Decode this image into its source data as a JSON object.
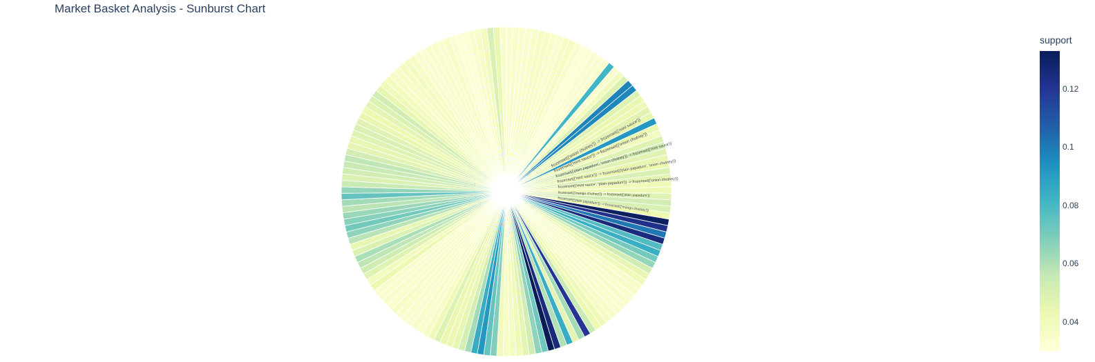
{
  "chart_data": {
    "type": "sunburst",
    "title": "Market Basket Analysis - Sunburst Chart",
    "colorbar": {
      "title": "support",
      "range": [
        0.03,
        0.133
      ],
      "ticks": [
        "0.04",
        "0.06",
        "0.08",
        "0.1",
        "0.12"
      ],
      "colorscale": [
        "#ffffd9",
        "#edf8b1",
        "#c7e9b4",
        "#7fcdbb",
        "#41b6c4",
        "#1d91c0",
        "#225ea8",
        "#253494",
        "#081d58"
      ]
    },
    "legible_labels": [
      "frozenset({'onion chutney'}) -> frozenset({'mint sauce'})",
      "frozenset({'mint sauce'}) -> frozenset({'onion chutney'})",
      "frozenset({'plain papadum', 'onion chutney'}) -> frozenset({'mint sauce'})",
      "frozenset({'mint sauce'}) -> frozenset({'plain papadum', 'onion chutney'})",
      "frozenset({'mint sauce', 'plain papadum'}) -> frozenset({'onion chutney'})",
      "frozenset({'mango chutney'}) -> frozenset({'plain papadum'})",
      "frozenset({'plain papadum'}) -> frozenset({'mango chutney'})"
    ],
    "sectors": [
      {
        "support": 0.034
      },
      {
        "support": 0.035
      },
      {
        "support": 0.033
      },
      {
        "support": 0.034
      },
      {
        "support": 0.035
      },
      {
        "support": 0.036
      },
      {
        "support": 0.036
      },
      {
        "support": 0.035
      },
      {
        "support": 0.034
      },
      {
        "support": 0.036
      },
      {
        "support": 0.037
      },
      {
        "support": 0.034
      },
      {
        "support": 0.032
      },
      {
        "support": 0.031
      },
      {
        "support": 0.033
      },
      {
        "support": 0.033
      },
      {
        "support": 0.034
      },
      {
        "support": 0.082
      },
      {
        "support": 0.034
      },
      {
        "support": 0.039
      },
      {
        "support": 0.049
      },
      {
        "support": 0.098
      },
      {
        "support": 0.097
      },
      {
        "support": 0.048
      },
      {
        "support": 0.044
      },
      {
        "support": 0.042
      },
      {
        "support": 0.047
      },
      {
        "support": 0.045
      },
      {
        "support": 0.092
      },
      {
        "support": 0.044
      },
      {
        "support": 0.039
      },
      {
        "support": 0.048
      },
      {
        "support": 0.052
      },
      {
        "support": 0.047
      },
      {
        "support": 0.045
      },
      {
        "support": 0.043
      },
      {
        "support": 0.05
      },
      {
        "support": 0.046
      },
      {
        "support": 0.041
      },
      {
        "support": 0.042
      },
      {
        "support": 0.048
      },
      {
        "support": 0.052
      },
      {
        "support": 0.05
      },
      {
        "support": 0.043
      },
      {
        "support": 0.131
      },
      {
        "support": 0.122
      },
      {
        "support": 0.101
      },
      {
        "support": 0.125
      },
      {
        "support": 0.078
      },
      {
        "support": 0.084
      },
      {
        "support": 0.071
      },
      {
        "support": 0.065
      },
      {
        "support": 0.052
      },
      {
        "support": 0.045
      },
      {
        "support": 0.041
      },
      {
        "support": 0.035
      },
      {
        "support": 0.036
      },
      {
        "support": 0.034
      },
      {
        "support": 0.035
      },
      {
        "support": 0.033
      },
      {
        "support": 0.034
      },
      {
        "support": 0.035
      },
      {
        "support": 0.037
      },
      {
        "support": 0.041
      },
      {
        "support": 0.043
      },
      {
        "support": 0.055
      },
      {
        "support": 0.12
      },
      {
        "support": 0.062
      },
      {
        "support": 0.046
      },
      {
        "support": 0.085
      },
      {
        "support": 0.06
      },
      {
        "support": 0.126
      },
      {
        "support": 0.135
      },
      {
        "support": 0.072
      },
      {
        "support": 0.066
      },
      {
        "support": 0.052
      },
      {
        "support": 0.046
      },
      {
        "support": 0.041
      },
      {
        "support": 0.038
      },
      {
        "support": 0.036
      },
      {
        "support": 0.04
      },
      {
        "support": 0.068
      },
      {
        "support": 0.074
      },
      {
        "support": 0.092
      },
      {
        "support": 0.085
      },
      {
        "support": 0.062
      },
      {
        "support": 0.051
      },
      {
        "support": 0.045
      },
      {
        "support": 0.042
      },
      {
        "support": 0.044
      },
      {
        "support": 0.048
      },
      {
        "support": 0.041
      },
      {
        "support": 0.036
      },
      {
        "support": 0.034
      },
      {
        "support": 0.035
      },
      {
        "support": 0.033
      },
      {
        "support": 0.034
      },
      {
        "support": 0.035
      },
      {
        "support": 0.036
      },
      {
        "support": 0.034
      },
      {
        "support": 0.035
      },
      {
        "support": 0.033
      },
      {
        "support": 0.034
      },
      {
        "support": 0.043
      },
      {
        "support": 0.039
      },
      {
        "support": 0.048
      },
      {
        "support": 0.053
      },
      {
        "support": 0.057
      },
      {
        "support": 0.061
      },
      {
        "support": 0.049
      },
      {
        "support": 0.045
      },
      {
        "support": 0.058
      },
      {
        "support": 0.066
      },
      {
        "support": 0.071
      },
      {
        "support": 0.067
      },
      {
        "support": 0.064
      },
      {
        "support": 0.058
      },
      {
        "support": 0.062
      },
      {
        "support": 0.074
      },
      {
        "support": 0.065
      },
      {
        "support": 0.055
      },
      {
        "support": 0.049
      },
      {
        "support": 0.052
      },
      {
        "support": 0.055
      },
      {
        "support": 0.057
      },
      {
        "support": 0.052
      },
      {
        "support": 0.046
      },
      {
        "support": 0.045
      },
      {
        "support": 0.048
      },
      {
        "support": 0.05
      },
      {
        "support": 0.047
      },
      {
        "support": 0.044
      },
      {
        "support": 0.043
      },
      {
        "support": 0.046
      },
      {
        "support": 0.049
      },
      {
        "support": 0.052
      },
      {
        "support": 0.045
      },
      {
        "support": 0.041
      },
      {
        "support": 0.039
      },
      {
        "support": 0.036
      },
      {
        "support": 0.035
      },
      {
        "support": 0.037
      },
      {
        "support": 0.038
      },
      {
        "support": 0.036
      },
      {
        "support": 0.034
      },
      {
        "support": 0.033
      },
      {
        "support": 0.034
      },
      {
        "support": 0.035
      },
      {
        "support": 0.034
      },
      {
        "support": 0.036
      },
      {
        "support": 0.033
      },
      {
        "support": 0.031
      },
      {
        "support": 0.032
      },
      {
        "support": 0.034
      },
      {
        "support": 0.036
      },
      {
        "support": 0.039
      },
      {
        "support": 0.05
      },
      {
        "support": 0.044
      },
      {
        "support": 0.034
      }
    ]
  }
}
